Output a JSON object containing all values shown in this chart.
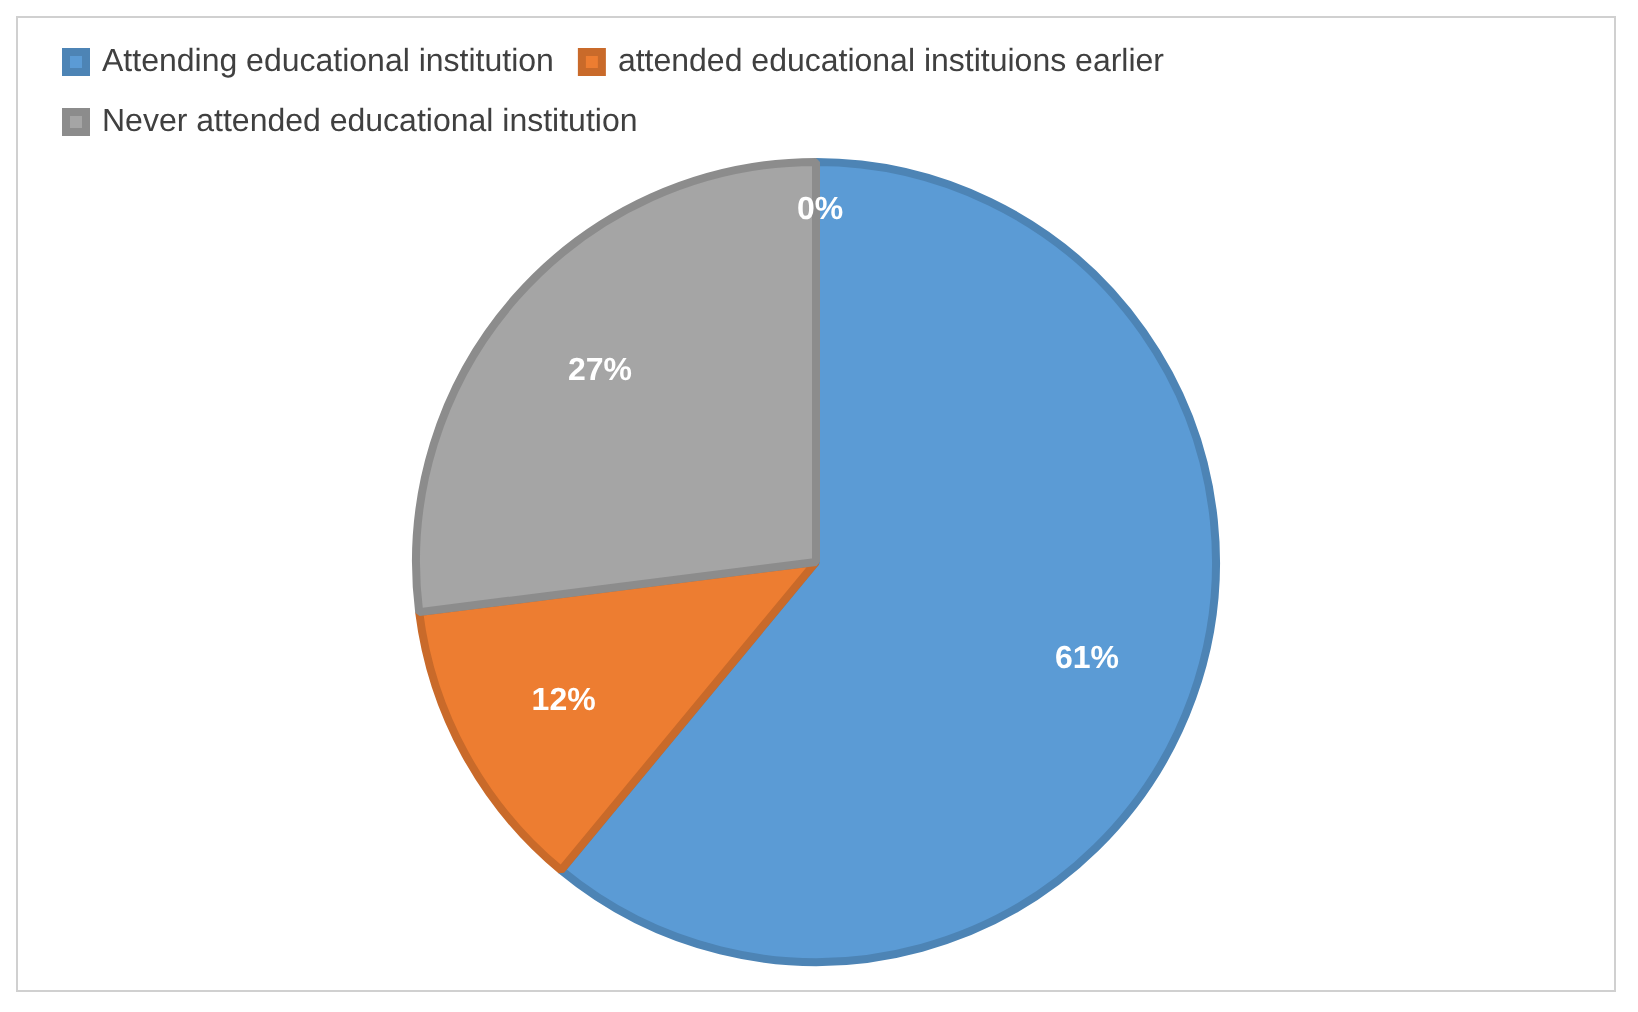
{
  "chart_data": {
    "type": "pie",
    "categories": [
      "Attending educational institution",
      "attended educational instituions earlier",
      "Never attended educational institution"
    ],
    "values": [
      61,
      12,
      27
    ],
    "colors": [
      "#5b9bd5",
      "#ed7d31",
      "#a5a5a5"
    ],
    "value_labels": [
      "61%",
      "12%",
      "27%"
    ],
    "legend": "top left",
    "annotations": [
      "0%"
    ]
  }
}
